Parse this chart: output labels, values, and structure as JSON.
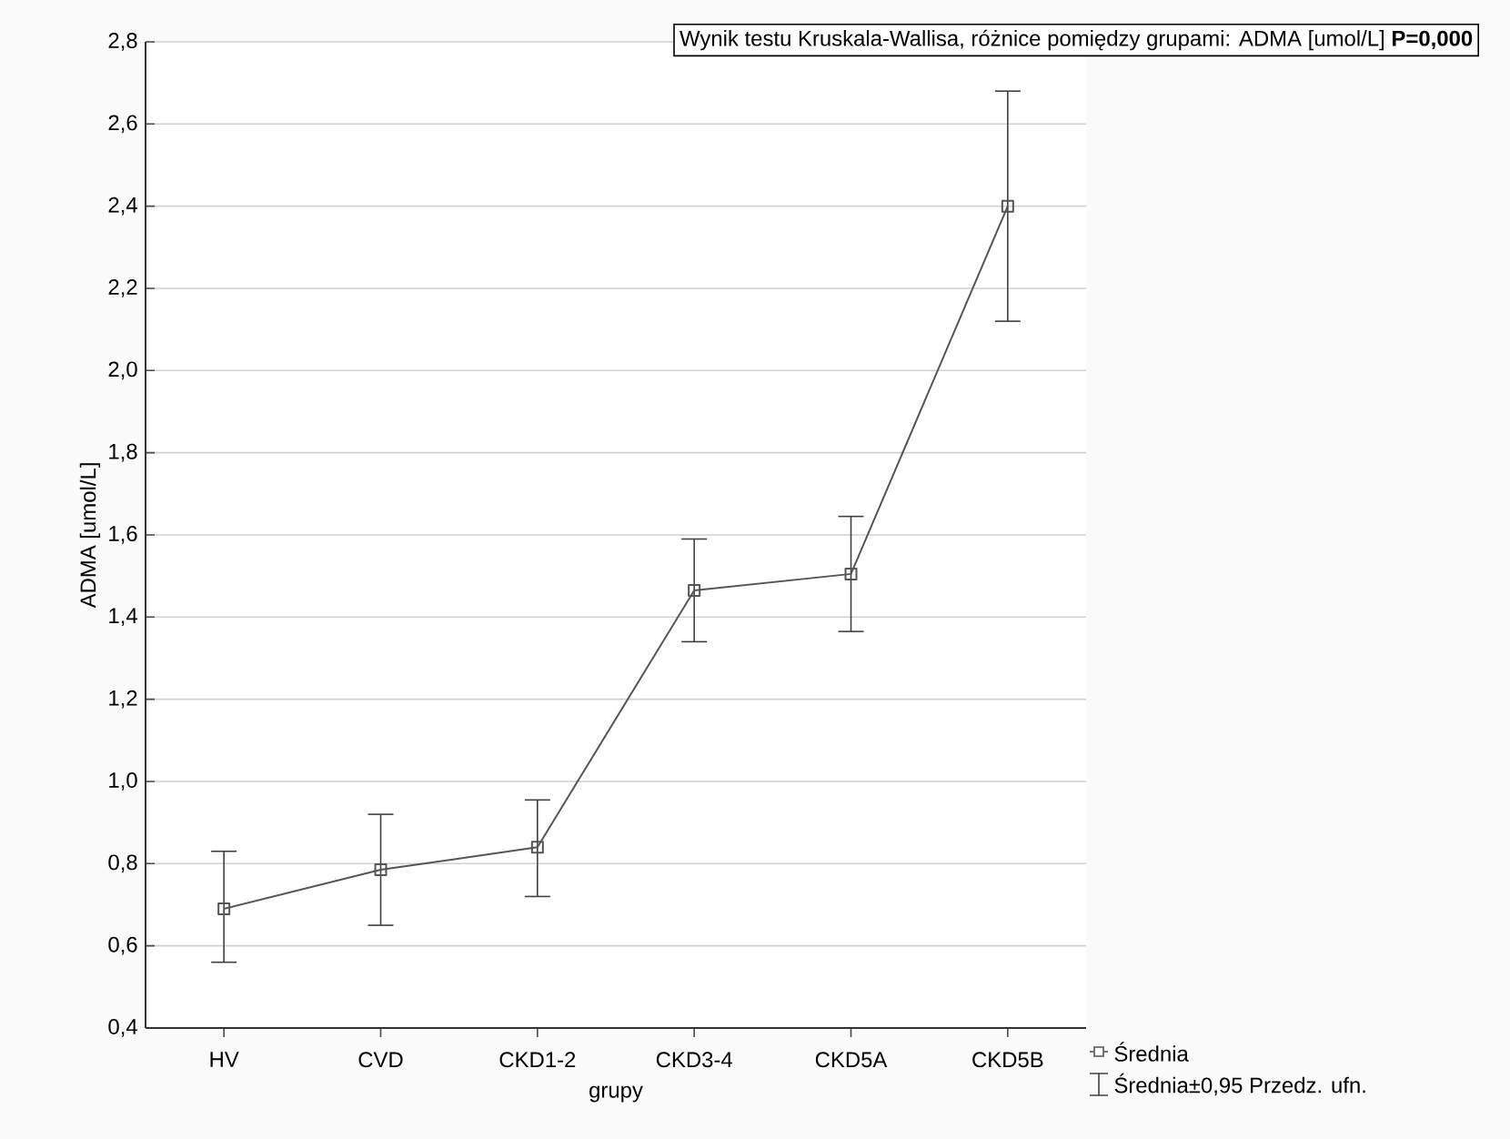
{
  "chart_data": {
    "type": "line",
    "title": "Wynik testu Kruskala-Wallisa, różnice pomiędzy grupami: ADMA [umol/L] **P=0,000**",
    "xlabel": "grupy",
    "ylabel": "ADMA [umol/L]",
    "categories": [
      "HV",
      "CVD",
      "CKD1-2",
      "CKD3-4",
      "CKD5A",
      "CKD5B"
    ],
    "series": [
      {
        "name": "Średnia",
        "color": "#555555",
        "values": [
          0.69,
          0.785,
          0.84,
          1.465,
          1.505,
          2.4
        ],
        "errors": [
          [
            0.56,
            0.83
          ],
          [
            0.65,
            0.92
          ],
          [
            0.72,
            0.955
          ],
          [
            1.34,
            1.59
          ],
          [
            1.365,
            1.645
          ],
          [
            2.12,
            2.68
          ]
        ]
      }
    ],
    "ylim": [
      0.4,
      2.8
    ],
    "yticks": [
      {
        "value": 0.4,
        "label": "0,4"
      },
      {
        "value": 0.6,
        "label": "0,6"
      },
      {
        "value": 0.8,
        "label": "0,8"
      },
      {
        "value": 1.0,
        "label": "1,0"
      },
      {
        "value": 1.2,
        "label": "1,2"
      },
      {
        "value": 1.4,
        "label": "1,4"
      },
      {
        "value": 1.6,
        "label": "1,6"
      },
      {
        "value": 1.8,
        "label": "1,8"
      },
      {
        "value": 2.0,
        "label": "2,0"
      },
      {
        "value": 2.2,
        "label": "2,2"
      },
      {
        "value": 2.4,
        "label": "2,4"
      },
      {
        "value": 2.6,
        "label": "2,6"
      },
      {
        "value": 2.8,
        "label": "2,8"
      }
    ],
    "grid": "y",
    "legend": "bottom right",
    "marker": "square",
    "line_style": "solid",
    "annotations": [
      "Średnia±0,95 Przedz. ufn."
    ]
  }
}
